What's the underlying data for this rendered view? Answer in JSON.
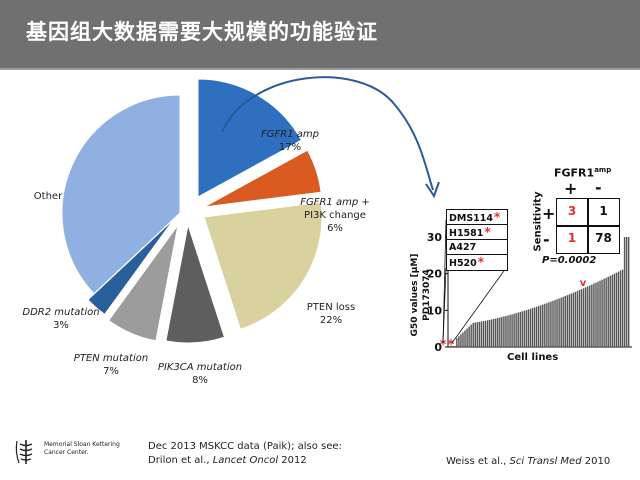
{
  "header": {
    "title": "基因组大数据需要大规模的功能验证"
  },
  "chart_data": [
    {
      "type": "pie",
      "labels": [
        {
          "lines": [
            "FGFR1 amp",
            "17%"
          ],
          "italic_first": true
        },
        {
          "lines": [
            "FGFR1 amp +",
            "PI3K change",
            "6%"
          ],
          "italic_first": true
        },
        {
          "lines": [
            "PTEN loss",
            "22%"
          ],
          "italic_first": false
        },
        {
          "lines": [
            "PIK3CA mutation",
            "8%"
          ],
          "italic_first": true
        },
        {
          "lines": [
            "PTEN mutation",
            "7%"
          ],
          "italic_first": true
        },
        {
          "lines": [
            "DDR2 mutation",
            "3%"
          ],
          "italic_first": true
        },
        {
          "lines": [
            "Other"
          ],
          "italic_first": false
        }
      ],
      "values": [
        17,
        6,
        22,
        8,
        7,
        3,
        37
      ],
      "colors": [
        "#2e6fc0",
        "#d95b22",
        "#d9d29e",
        "#5e5e5e",
        "#9c9c9c",
        "#2a5f9e",
        "#8fb0e0"
      ],
      "exploded": [
        0,
        1,
        2,
        3,
        4
      ]
    },
    {
      "type": "bar",
      "ylabel": "G50 values [µM] PD173074",
      "xlabel": "Cell lines",
      "yticks": [
        "0",
        "10",
        "20",
        "30"
      ],
      "ylim": [
        0,
        32
      ],
      "highlighted_cell_lines": [
        "DMS114",
        "H1581",
        "A427",
        "H520"
      ],
      "highlighted_marked": [
        true,
        true,
        false,
        true
      ],
      "n_bars": 88,
      "bar_color": "#555555",
      "marker_color": "#e03030"
    }
  ],
  "sensitivity_table": {
    "col_header": "FGFR1",
    "col_header_sup": "amp",
    "col_plus": "+",
    "col_minus": "-",
    "row_label": "Sensitivity",
    "row_plus": "+",
    "row_minus": "-",
    "cells": [
      [
        "3",
        "1"
      ],
      [
        "1",
        "78"
      ]
    ],
    "pvalue": "P=0.0002"
  },
  "footer": {
    "logo_lines": [
      "Memorial Sloan Kettering",
      "Cancer Center."
    ],
    "source_line1": "Dec 2013 MSKCC data (Paik); also see:",
    "source_line2_pre": "Drilon et al., ",
    "source_line2_journal": "Lancet Oncol",
    "source_line2_post": " 2012",
    "citation_pre": "Weiss et al., ",
    "citation_journal": "Sci Transl Med",
    "citation_post": " 2010"
  }
}
